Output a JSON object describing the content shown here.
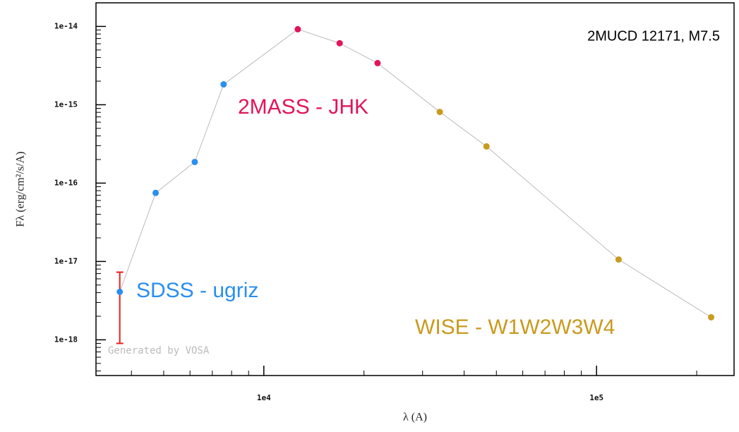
{
  "chart_data": {
    "type": "scatter",
    "title": "2MUCD 12171, M7.5",
    "xlabel": "λ (A)",
    "ylabel": "Fλ (erg/cm²/s/A)",
    "watermark": "Generated by VOSA",
    "xscale": "log",
    "yscale": "log",
    "xlim": [
      3130,
      259000
    ],
    "ylim": [
      3.5e-19,
      2e-14
    ],
    "xticks": [
      {
        "value": 10000,
        "label": "1e4"
      },
      {
        "value": 100000,
        "label": "1e5"
      }
    ],
    "yticks": [
      {
        "value": 1e-18,
        "label": "1e-18"
      },
      {
        "value": 1e-17,
        "label": "1e-17"
      },
      {
        "value": 1e-16,
        "label": "1e-16"
      },
      {
        "value": 1e-15,
        "label": "1e-15"
      },
      {
        "value": 1e-14,
        "label": "1e-14"
      }
    ],
    "xminorticks": [
      4000,
      5000,
      6000,
      7000,
      8000,
      9000,
      20000,
      30000,
      40000,
      50000,
      60000,
      70000,
      80000,
      90000,
      200000
    ],
    "yminorticks": [
      4e-19,
      5e-19,
      6e-19,
      7e-19,
      8e-19,
      9e-19,
      2e-18,
      3e-18,
      4e-18,
      5e-18,
      6e-18,
      7e-18,
      8e-18,
      9e-18,
      2e-17,
      3e-17,
      4e-17,
      5e-17,
      6e-17,
      7e-17,
      8e-17,
      9e-17,
      2e-16,
      3e-16,
      4e-16,
      5e-16,
      6e-16,
      7e-16,
      8e-16,
      9e-16,
      2e-15,
      3e-15,
      4e-15,
      5e-15,
      6e-15,
      7e-15,
      8e-15,
      9e-15,
      2e-14
    ],
    "line_color": "#bbbbbb",
    "error_color": "#e8201c",
    "series": [
      {
        "name": "SDSS - ugriz",
        "color": "#2a8ff0",
        "x": [
          3690,
          4730,
          6200,
          7570
        ],
        "values": [
          4.1e-18,
          7.5e-17,
          1.86e-16,
          1.82e-15
        ],
        "errors": [
          3.2e-18,
          null,
          null,
          null
        ]
      },
      {
        "name": "2MASS - JHK",
        "color": "#e2145a",
        "x": [
          12650,
          16900,
          21970
        ],
        "values": [
          9.2e-15,
          6.1e-15,
          3.4e-15
        ]
      },
      {
        "name": "WISE - W1W2W3W4",
        "color": "#c99a1e",
        "x": [
          33800,
          46700,
          116500,
          221000
        ],
        "values": [
          8.1e-16,
          2.94e-16,
          1.06e-17,
          1.94e-18
        ]
      }
    ]
  }
}
